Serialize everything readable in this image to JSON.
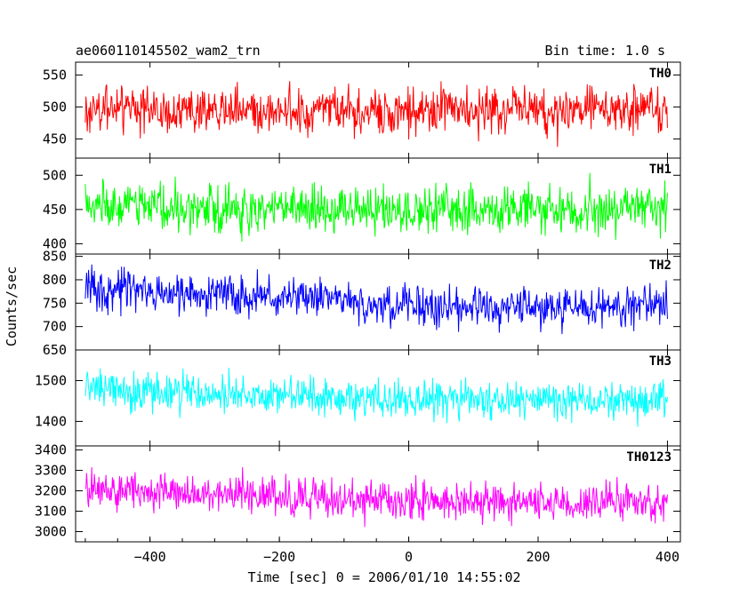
{
  "chart_data": {
    "type": "line",
    "title": "ae060110145502_wam2_trn",
    "bin_time_label": "Bin time: 1.0 s",
    "xlabel": "Time [sec] 0 = 2006/01/10 14:55:02",
    "ylabel": "Counts/sec",
    "xlim": [
      -515,
      420
    ],
    "x_range": [
      -500,
      400
    ],
    "bin_size": 1.0,
    "x_ticks": [
      -400,
      -200,
      0,
      200,
      400
    ],
    "grid": false,
    "panels": [
      {
        "name": "TH0",
        "color": "#ff0000",
        "ylim": [
          420,
          570
        ],
        "y_ticks": [
          450,
          500,
          550
        ],
        "y_tick_labels": [
          "450",
          "500",
          "550"
        ],
        "mean_trend": [
          [
            -500,
            497
          ],
          [
            -250,
            495
          ],
          [
            0,
            492
          ],
          [
            200,
            495
          ],
          [
            400,
            497
          ]
        ],
        "noise_amplitude": 38
      },
      {
        "name": "TH1",
        "color": "#00ff00",
        "ylim": [
          385,
          525
        ],
        "y_ticks": [
          400,
          450,
          500
        ],
        "y_tick_labels": [
          "400",
          "450",
          "500"
        ],
        "mean_trend": [
          [
            -500,
            456
          ],
          [
            -250,
            452
          ],
          [
            0,
            450
          ],
          [
            200,
            448
          ],
          [
            400,
            452
          ]
        ],
        "noise_amplitude": 35
      },
      {
        "name": "TH2",
        "color": "#0000ff",
        "ylim": [
          650,
          855
        ],
        "y_ticks": [
          650,
          700,
          750,
          800,
          850
        ],
        "y_tick_labels": [
          "650",
          "700",
          "750",
          "800",
          "850"
        ],
        "mean_trend": [
          [
            -500,
            775
          ],
          [
            -250,
            765
          ],
          [
            -100,
            758
          ],
          [
            -60,
            740
          ],
          [
            0,
            745
          ],
          [
            200,
            740
          ],
          [
            400,
            742
          ]
        ],
        "noise_amplitude": 42
      },
      {
        "name": "TH3",
        "color": "#00ffff",
        "ylim": [
          1340,
          1575
        ],
        "y_ticks": [
          1400,
          1500
        ],
        "y_tick_labels": [
          "1400",
          "1500"
        ],
        "mean_trend": [
          [
            -500,
            1475
          ],
          [
            -250,
            1465
          ],
          [
            0,
            1455
          ],
          [
            200,
            1452
          ],
          [
            400,
            1450
          ]
        ],
        "noise_amplitude": 48
      },
      {
        "name": "TH0123",
        "color": "#ff00ff",
        "ylim": [
          2950,
          3420
        ],
        "y_ticks": [
          3000,
          3100,
          3200,
          3300,
          3400
        ],
        "y_tick_labels": [
          "3000",
          "3100",
          "3200",
          "3300",
          "3400"
        ],
        "mean_trend": [
          [
            -500,
            3210
          ],
          [
            -250,
            3180
          ],
          [
            0,
            3150
          ],
          [
            200,
            3140
          ],
          [
            400,
            3140
          ]
        ],
        "noise_amplitude": 95
      }
    ]
  }
}
